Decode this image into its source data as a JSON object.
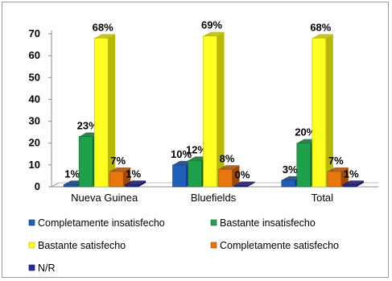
{
  "chart_data": {
    "type": "bar",
    "categories": [
      "Nueva Guinea",
      "Bluefields",
      "Total"
    ],
    "series": [
      {
        "name": "Completamente insatisfecho",
        "values": [
          1,
          10,
          3
        ],
        "labels": [
          "1%",
          "10%",
          "3%"
        ],
        "color": "#1f5fb8",
        "side": "#0f3a78"
      },
      {
        "name": "Bastante insatisfecho",
        "values": [
          23,
          12,
          20
        ],
        "labels": [
          "23%",
          "12%",
          "20%"
        ],
        "color": "#1fa04a",
        "side": "#0e6a2c"
      },
      {
        "name": "Bastante satisfecho",
        "values": [
          68,
          69,
          68
        ],
        "labels": [
          "68%",
          "69%",
          "68%"
        ],
        "color": "#ffff22",
        "side": "#b8b800"
      },
      {
        "name": "Completamente satisfecho",
        "values": [
          7,
          8,
          7
        ],
        "labels": [
          "7%",
          "8%",
          "7%"
        ],
        "color": "#e8760e",
        "side": "#9e4a05"
      },
      {
        "name": "N/R",
        "values": [
          1,
          0,
          1
        ],
        "labels": [
          "1%",
          "0%",
          "1%"
        ],
        "color": "#2a2a9a",
        "side": "#15155e"
      }
    ],
    "yticks": [
      0,
      10,
      20,
      30,
      40,
      50,
      60,
      70
    ],
    "ylim": [
      0,
      70
    ],
    "grid": false,
    "legend_position": "bottom"
  }
}
